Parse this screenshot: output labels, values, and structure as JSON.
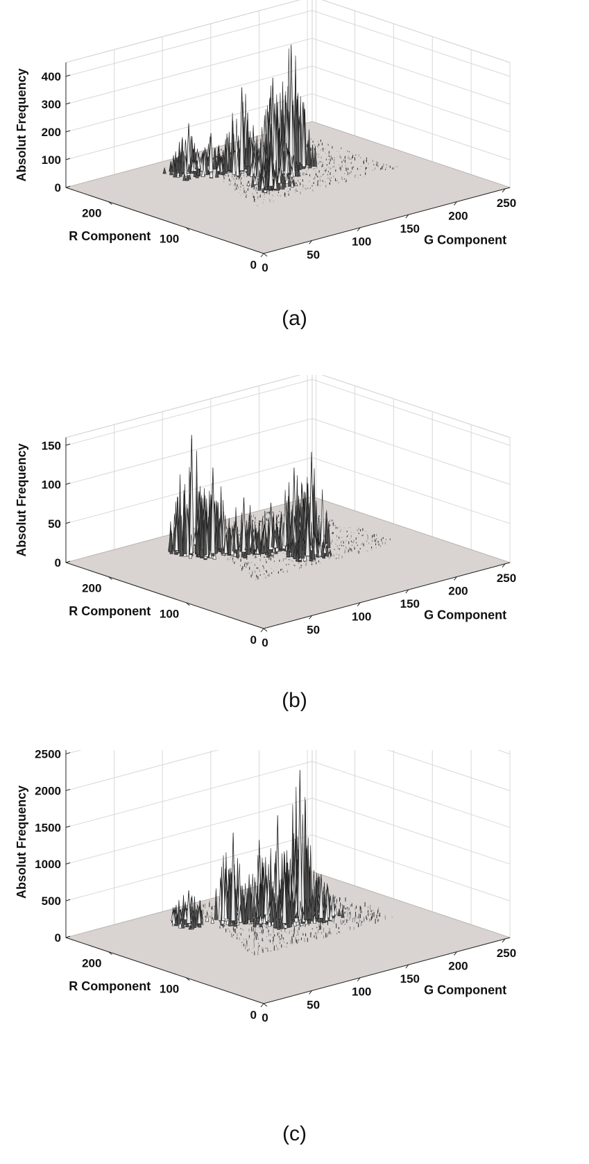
{
  "chart_data": [
    {
      "type": "surface",
      "panel_label": "(a)",
      "xlabel": "G Component",
      "ylabel": "R Component",
      "zlabel": "Absolut Frequency",
      "xlim": [
        0,
        255
      ],
      "ylim": [
        0,
        255
      ],
      "zlim": [
        0,
        450
      ],
      "x_ticks": [
        "0",
        "50",
        "100",
        "150",
        "200",
        "250"
      ],
      "y_ticks": [
        "0",
        "100",
        "200"
      ],
      "z_ticks": [
        "0",
        "100",
        "200",
        "300",
        "400"
      ],
      "grid": true,
      "series": [
        {
          "peaks": [
            {
              "g": 95,
              "r": 215,
              "height": 180
            },
            {
              "g": 110,
              "r": 205,
              "height": 140
            },
            {
              "g": 130,
              "r": 190,
              "height": 300
            },
            {
              "g": 150,
              "r": 175,
              "height": 330
            },
            {
              "g": 165,
              "r": 170,
              "height": 440
            },
            {
              "g": 140,
              "r": 160,
              "height": 260
            },
            {
              "g": 120,
              "r": 140,
              "height": 130
            }
          ]
        }
      ]
    },
    {
      "type": "surface",
      "panel_label": "(b)",
      "xlabel": "G Component",
      "ylabel": "R Component",
      "zlabel": "Absolut Frequency",
      "xlim": [
        0,
        255
      ],
      "ylim": [
        0,
        255
      ],
      "zlim": [
        0,
        160
      ],
      "x_ticks": [
        "0",
        "50",
        "100",
        "150",
        "200",
        "250"
      ],
      "y_ticks": [
        "0",
        "100",
        "200"
      ],
      "z_ticks": [
        "0",
        "50",
        "100",
        "150"
      ],
      "grid": true,
      "series": [
        {
          "peaks": [
            {
              "g": 90,
              "r": 205,
              "height": 150
            },
            {
              "g": 100,
              "r": 190,
              "height": 110
            },
            {
              "g": 120,
              "r": 175,
              "height": 70
            },
            {
              "g": 140,
              "r": 165,
              "height": 60
            },
            {
              "g": 160,
              "r": 160,
              "height": 100
            },
            {
              "g": 170,
              "r": 150,
              "height": 120
            },
            {
              "g": 150,
              "r": 130,
              "height": 55
            }
          ]
        }
      ]
    },
    {
      "type": "surface",
      "panel_label": "(c)",
      "xlabel": "G Component",
      "ylabel": "R Component",
      "zlabel": "Absolut Frequency",
      "xlim": [
        0,
        255
      ],
      "ylim": [
        0,
        255
      ],
      "zlim": [
        0,
        2600
      ],
      "x_ticks": [
        "0",
        "50",
        "100",
        "150",
        "200",
        "250"
      ],
      "y_ticks": [
        "0",
        "100",
        "200"
      ],
      "z_ticks": [
        "0",
        "500",
        "1000",
        "1500",
        "2000",
        "2500"
      ],
      "grid": true,
      "series": [
        {
          "peaks": [
            {
              "g": 95,
              "r": 215,
              "height": 450
            },
            {
              "g": 125,
              "r": 195,
              "height": 1200
            },
            {
              "g": 140,
              "r": 180,
              "height": 1100
            },
            {
              "g": 155,
              "r": 175,
              "height": 1400
            },
            {
              "g": 170,
              "r": 165,
              "height": 2000
            },
            {
              "g": 150,
              "r": 160,
              "height": 800
            },
            {
              "g": 180,
              "r": 150,
              "height": 600
            }
          ]
        }
      ]
    }
  ]
}
